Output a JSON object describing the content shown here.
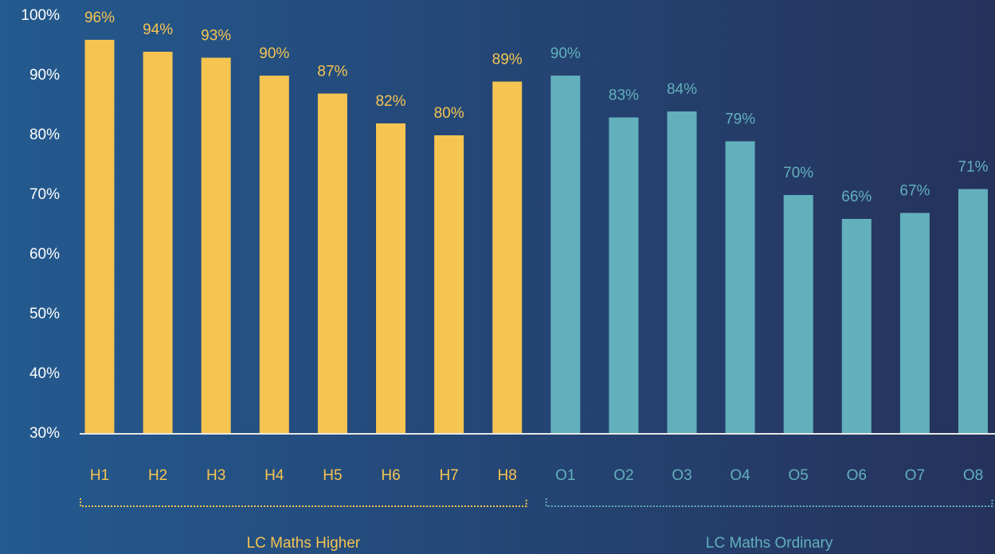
{
  "chart_data": {
    "type": "bar",
    "groups": [
      {
        "name": "LC Maths Higher",
        "color": "#f5c451",
        "categories": [
          "H1",
          "H2",
          "H3",
          "H4",
          "H5",
          "H6",
          "H7",
          "H8"
        ],
        "values": [
          96,
          94,
          93,
          90,
          87,
          82,
          80,
          89
        ],
        "value_labels": [
          "96%",
          "94%",
          "93%",
          "90%",
          "87%",
          "82%",
          "80%",
          "89%"
        ]
      },
      {
        "name": "LC Maths Ordinary",
        "color": "#62b0bc",
        "categories": [
          "O1",
          "O2",
          "O3",
          "O4",
          "O5",
          "O6",
          "O7",
          "O8"
        ],
        "values": [
          90,
          83,
          84,
          79,
          70,
          66,
          67,
          71
        ],
        "value_labels": [
          "90%",
          "83%",
          "84%",
          "79%",
          "70%",
          "66%",
          "67%",
          "71%"
        ]
      }
    ],
    "ylim": [
      30,
      100
    ],
    "yticks": [
      {
        "value": 30,
        "label": "30%"
      },
      {
        "value": 40,
        "label": "40%"
      },
      {
        "value": 50,
        "label": "50%"
      },
      {
        "value": 60,
        "label": "60%"
      },
      {
        "value": 70,
        "label": "70%"
      },
      {
        "value": 80,
        "label": "80%"
      },
      {
        "value": 90,
        "label": "90%"
      },
      {
        "value": 100,
        "label": "100%"
      }
    ],
    "grid": false
  }
}
